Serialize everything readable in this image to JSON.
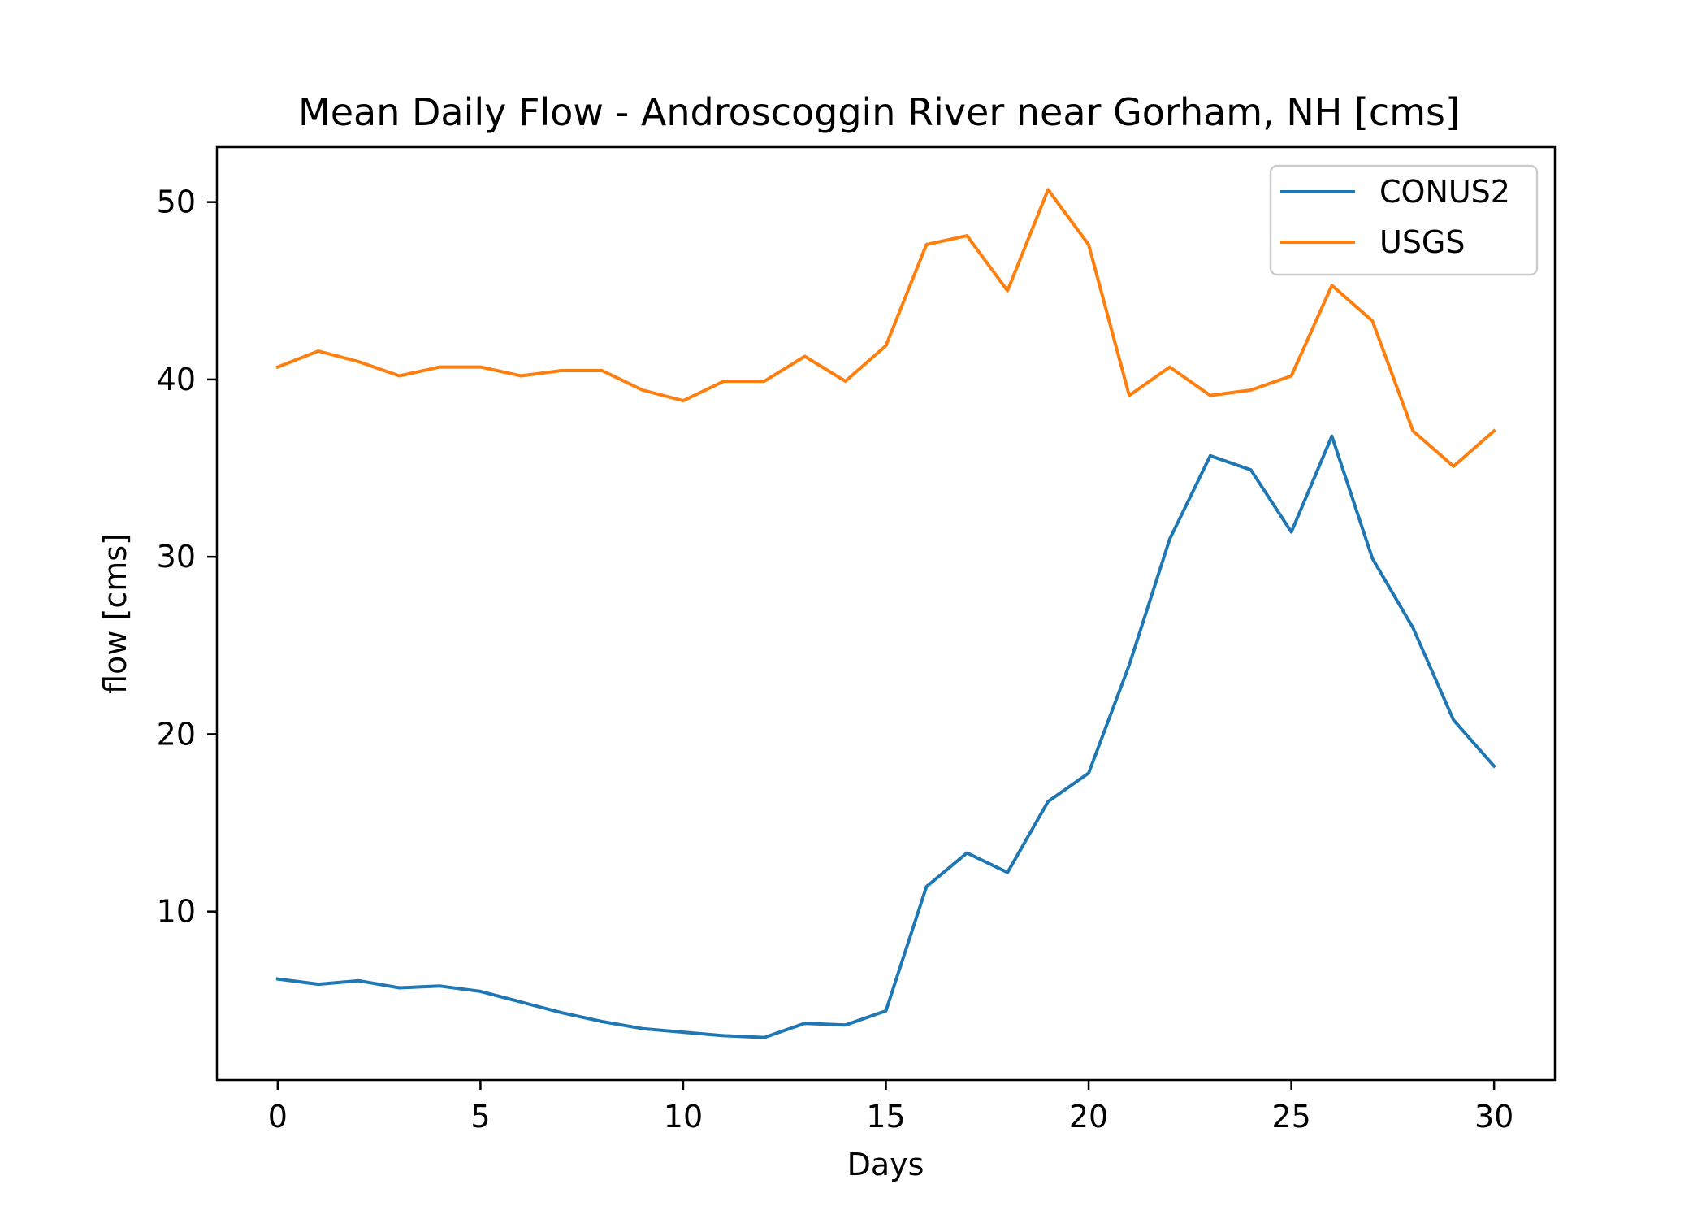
{
  "chart_data": {
    "type": "line",
    "title": "Mean Daily Flow - Androscoggin River near Gorham, NH [cms]",
    "xlabel": "Days",
    "ylabel": "flow [cms]",
    "xlim": [
      -1.5,
      31.5
    ],
    "ylim": [
      0.5,
      53.1
    ],
    "xticks": [
      0,
      5,
      10,
      15,
      20,
      25,
      30
    ],
    "yticks": [
      10,
      20,
      30,
      40,
      50
    ],
    "grid": false,
    "legend_position": "upper right",
    "x": [
      0,
      1,
      2,
      3,
      4,
      5,
      6,
      7,
      8,
      9,
      10,
      11,
      12,
      13,
      14,
      15,
      16,
      17,
      18,
      19,
      20,
      21,
      22,
      23,
      24,
      25,
      26,
      27,
      28,
      29,
      30
    ],
    "series": [
      {
        "name": "CONUS2",
        "color": "#1f77b4",
        "values": [
          6.2,
          5.9,
          6.1,
          5.7,
          5.8,
          5.5,
          4.9,
          4.3,
          3.8,
          3.4,
          3.2,
          3.0,
          2.9,
          3.7,
          3.6,
          4.4,
          11.4,
          13.3,
          12.2,
          16.2,
          17.8,
          23.9,
          31.0,
          35.7,
          34.9,
          31.4,
          36.8,
          29.9,
          26.0,
          20.8,
          18.2
        ]
      },
      {
        "name": "USGS",
        "color": "#ff7f0e",
        "values": [
          40.7,
          41.6,
          41.0,
          40.2,
          40.7,
          40.7,
          40.2,
          40.5,
          40.5,
          39.4,
          38.8,
          39.9,
          39.9,
          41.3,
          39.9,
          41.9,
          47.6,
          48.1,
          45.0,
          50.7,
          47.6,
          39.1,
          40.7,
          39.1,
          39.4,
          40.2,
          45.3,
          43.3,
          37.1,
          35.1,
          37.1
        ]
      }
    ]
  }
}
